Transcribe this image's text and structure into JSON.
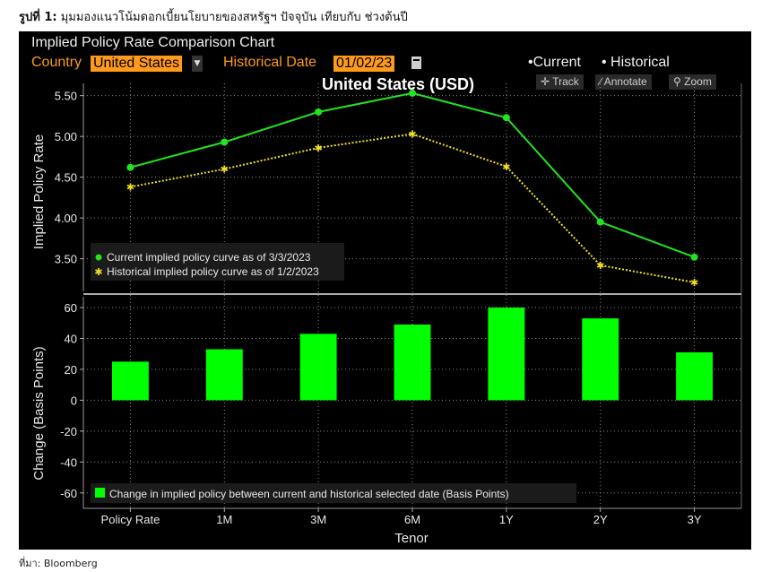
{
  "caption": {
    "prefix": "รูปที่ 1:",
    "text": "มุมมองแนวโน้มดอกเบี้ยนโยบายของสหรัฐฯ ปัจจุบัน เทียบกับ ช่วงต้นปี"
  },
  "source": "ที่มา: Bloomberg",
  "panel": {
    "title": "Implied Policy Rate Comparison Chart",
    "country_label": "Country",
    "country_value": "United States",
    "date_label": "Historical Date",
    "date_value": "01/02/23",
    "legend_current": "•Current",
    "legend_historical": "• Historical",
    "tools": {
      "track": "Track",
      "annotate": "Annotate",
      "zoom": "Zoom"
    }
  },
  "colors": {
    "current": "#22e322",
    "historical": "#f0e020",
    "accent": "#ff9a1a",
    "bar": "#00ff00"
  },
  "chart_data": [
    {
      "type": "line",
      "title": "United States (USD)",
      "ylabel": "Implied Policy Rate",
      "categories": [
        "Policy Rate",
        "1M",
        "3M",
        "6M",
        "1Y",
        "2Y",
        "3Y"
      ],
      "ylim": [
        3.1,
        5.65
      ],
      "yticks": [
        "3.50",
        "4.00",
        "4.50",
        "5.00",
        "5.50"
      ],
      "grid": true,
      "series": [
        {
          "name": "Current implied policy curve as of 3/3/2023",
          "values": [
            4.62,
            4.93,
            5.3,
            5.53,
            5.23,
            3.95,
            3.52
          ]
        },
        {
          "name": "Historical implied policy curve as of 1/2/2023",
          "values": [
            4.38,
            4.6,
            4.86,
            5.03,
            4.63,
            3.42,
            3.21
          ]
        }
      ]
    },
    {
      "type": "bar",
      "ylabel": "Change (Basis Points)",
      "xlabel": "Tenor",
      "categories": [
        "Policy Rate",
        "1M",
        "3M",
        "6M",
        "1Y",
        "2Y",
        "3Y"
      ],
      "ylim": [
        -70,
        67
      ],
      "yticks": [
        "60",
        "40",
        "20",
        "0",
        "-20",
        "-40",
        "-60"
      ],
      "grid": true,
      "series": [
        {
          "name": "Change in implied policy between current and historical selected date (Basis Points)",
          "values": [
            25,
            33,
            43,
            49,
            60,
            53,
            31
          ]
        }
      ]
    }
  ]
}
